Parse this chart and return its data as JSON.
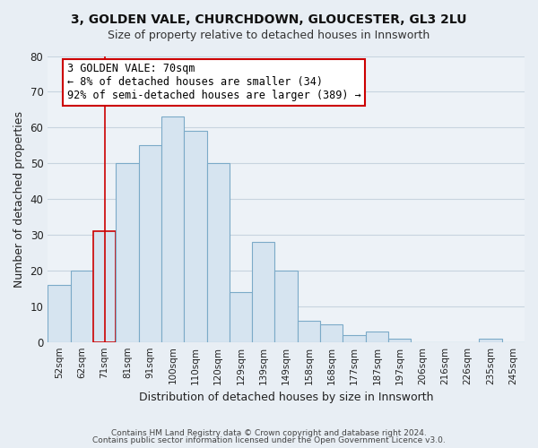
{
  "title1": "3, GOLDEN VALE, CHURCHDOWN, GLOUCESTER, GL3 2LU",
  "title2": "Size of property relative to detached houses in Innsworth",
  "xlabel": "Distribution of detached houses by size in Innsworth",
  "ylabel": "Number of detached properties",
  "bar_labels": [
    "52sqm",
    "62sqm",
    "71sqm",
    "81sqm",
    "91sqm",
    "100sqm",
    "110sqm",
    "120sqm",
    "129sqm",
    "139sqm",
    "149sqm",
    "158sqm",
    "168sqm",
    "177sqm",
    "187sqm",
    "197sqm",
    "206sqm",
    "216sqm",
    "226sqm",
    "235sqm",
    "245sqm"
  ],
  "bar_heights": [
    16,
    20,
    31,
    50,
    55,
    63,
    59,
    50,
    14,
    28,
    20,
    6,
    5,
    2,
    3,
    1,
    0,
    0,
    0,
    1,
    0
  ],
  "bar_color": "#d6e4f0",
  "bar_edge_color": "#7baac8",
  "highlight_bar_index": 2,
  "highlight_bar_edge_color": "#cc0000",
  "vline_x": 2,
  "vline_color": "#cc0000",
  "annotation_title": "3 GOLDEN VALE: 70sqm",
  "annotation_line1": "← 8% of detached houses are smaller (34)",
  "annotation_line2": "92% of semi-detached houses are larger (389) →",
  "annotation_box_color": "#ffffff",
  "annotation_box_edge_color": "#cc0000",
  "ylim": [
    0,
    80
  ],
  "yticks": [
    0,
    10,
    20,
    30,
    40,
    50,
    60,
    70,
    80
  ],
  "footer1": "Contains HM Land Registry data © Crown copyright and database right 2024.",
  "footer2": "Contains public sector information licensed under the Open Government Licence v3.0.",
  "background_color": "#e8eef4",
  "plot_background_color": "#edf2f7",
  "grid_color": "#c8d4df"
}
